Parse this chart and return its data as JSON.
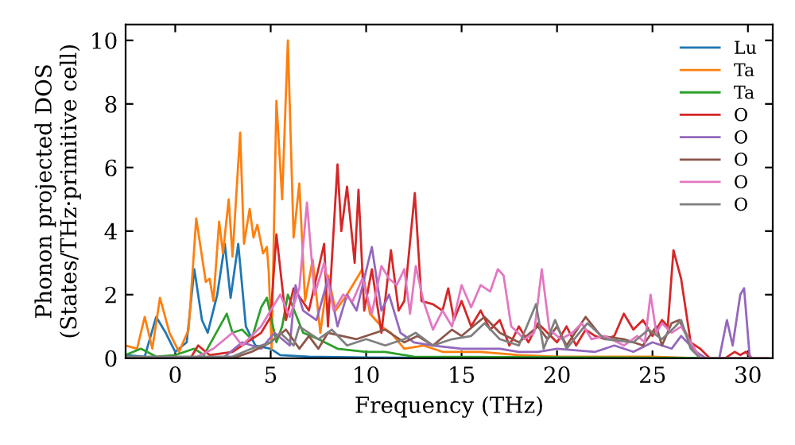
{
  "chart_data": {
    "type": "line",
    "xlabel": "Frequency (THz)",
    "ylabel": "Phonon projected DOS\n(States/THz·primitive cell)",
    "xlim": [
      -2.6,
      31.3
    ],
    "ylim": [
      0,
      10.5
    ],
    "xticks": [
      0,
      5,
      10,
      15,
      20,
      25,
      30
    ],
    "yticks": [
      0,
      2,
      4,
      6,
      8,
      10
    ],
    "grid": false,
    "legend": "top right",
    "marker": "none",
    "line_style": "solid",
    "series": [
      {
        "name": "Lu",
        "color": "#1f77b4",
        "x": [
          -2.6,
          -1.6,
          -1.0,
          -0.5,
          0,
          0.6,
          1.0,
          1.4,
          1.7,
          2.2,
          2.6,
          2.9,
          3.3,
          3.7,
          4.2,
          5.0,
          5.5,
          7,
          10,
          31
        ],
        "values": [
          0.1,
          0.05,
          1.3,
          0.8,
          0.2,
          0.5,
          2.8,
          1.2,
          0.8,
          2.0,
          3.6,
          1.9,
          3.6,
          1.0,
          0.4,
          0.3,
          0.1,
          0.05,
          0.02,
          0
        ]
      },
      {
        "name": "Ta",
        "color": "#ff7f0e",
        "x": [
          -2.6,
          -2,
          -1.6,
          -1.2,
          -0.8,
          -0.3,
          0.2,
          0.7,
          1.1,
          1.3,
          1.6,
          1.8,
          2.0,
          2.3,
          2.5,
          2.8,
          3.0,
          3.4,
          3.6,
          3.9,
          4.1,
          4.3,
          4.6,
          4.8,
          4.9,
          5.05,
          5.3,
          5.6,
          5.9,
          6.2,
          6.5,
          6.8,
          7.2,
          7.6,
          8.0,
          8.4,
          9.0,
          9.8,
          10.2,
          10.8,
          11.3,
          12,
          13,
          14,
          15,
          16,
          18,
          20,
          25,
          27.5,
          31
        ],
        "values": [
          0.4,
          0.3,
          1.3,
          0.3,
          1.9,
          0.8,
          0.2,
          0.9,
          4.4,
          3.6,
          2.4,
          2.5,
          1.8,
          4.3,
          3.3,
          5.0,
          3.2,
          7.1,
          3.6,
          4.7,
          3.8,
          4.2,
          3.3,
          3.5,
          2.7,
          0.3,
          8.1,
          5.0,
          10.0,
          3.8,
          5.5,
          1.8,
          3.1,
          0.8,
          2.6,
          1.5,
          2.0,
          2.8,
          1.4,
          1.0,
          0.8,
          0.3,
          0.4,
          0.2,
          0.2,
          0.2,
          0.1,
          0.05,
          0.05,
          0,
          0
        ]
      },
      {
        "name": "Ta",
        "color": "#2ca02c",
        "x": [
          -2.6,
          -1.8,
          -1,
          0,
          1.0,
          1.5,
          2.7,
          3.0,
          3.5,
          4.0,
          4.5,
          4.8,
          5.3,
          5.6,
          5.9,
          6.7,
          7.5,
          8.5,
          10,
          11,
          12.5,
          31
        ],
        "values": [
          0.1,
          0.3,
          0.05,
          0.1,
          0.3,
          0.1,
          1.4,
          0.8,
          0.9,
          0.6,
          1.6,
          1.9,
          0.5,
          1.0,
          2.0,
          0.8,
          0.6,
          0.3,
          0.2,
          0.2,
          0.05,
          0
        ]
      },
      {
        "name": "O",
        "color": "#d62728",
        "x": [
          -2.6,
          0.8,
          1.2,
          1.8,
          3,
          4.5,
          5.0,
          5.3,
          5.8,
          6.2,
          7,
          7.8,
          8.0,
          8.5,
          8.7,
          9.0,
          9.4,
          9.6,
          9.9,
          10.3,
          10.8,
          11.3,
          11.7,
          12.0,
          12.55,
          12.9,
          13.5,
          14,
          14.3,
          14.6,
          15,
          15.5,
          16,
          16.5,
          17,
          17.5,
          18,
          18.5,
          19,
          20,
          20.5,
          21,
          21.5,
          22,
          22.5,
          23,
          23.5,
          24,
          24.5,
          25,
          25.5,
          25.8,
          26.1,
          26.5,
          27,
          27.5,
          28,
          28.8,
          29.3,
          29.6,
          29.9,
          30.2,
          31
        ],
        "values": [
          0,
          0,
          0.4,
          0.1,
          0.2,
          0.8,
          1.3,
          3.9,
          1.2,
          2.2,
          1.5,
          3.6,
          1.0,
          6.1,
          4.0,
          5.4,
          3.0,
          5.3,
          1.5,
          2.8,
          0.8,
          3.4,
          1.5,
          1.8,
          5.2,
          1.8,
          1.7,
          1.5,
          2.2,
          1.2,
          1.8,
          1.0,
          1.5,
          0.9,
          1.2,
          0.4,
          1.0,
          0.5,
          1.1,
          0.5,
          1.0,
          0.4,
          0.9,
          0.7,
          0.6,
          0.7,
          1.4,
          0.9,
          1.2,
          0.7,
          1.2,
          1.0,
          3.4,
          2.5,
          0.5,
          0.3,
          0,
          0,
          0.2,
          0.1,
          0.2,
          0,
          0
        ]
      },
      {
        "name": "O",
        "color": "#9467bd",
        "x": [
          -2.6,
          2.5,
          3.5,
          4.5,
          5.2,
          6,
          6.3,
          6.7,
          7.4,
          8.0,
          8.5,
          9.0,
          9.5,
          10.3,
          10.8,
          11.2,
          11.8,
          12.5,
          13.5,
          15,
          17,
          18,
          19,
          20,
          22,
          23,
          24,
          25,
          26,
          26.5,
          27.3,
          27.8,
          28.5,
          28.9,
          29.2,
          29.6,
          29.8,
          30.1,
          31
        ],
        "values": [
          0,
          0,
          0.5,
          0.3,
          0.8,
          0.4,
          2.3,
          1.5,
          1.2,
          2.5,
          1.0,
          2.0,
          1.5,
          3.5,
          1.5,
          2.0,
          0.8,
          0.5,
          0.4,
          0.3,
          0.3,
          0.2,
          0.2,
          0.3,
          0.2,
          0.4,
          0.2,
          0.5,
          0.3,
          0.7,
          0.2,
          0,
          0,
          1.2,
          0.4,
          2.0,
          2.2,
          0,
          0
        ]
      },
      {
        "name": "O",
        "color": "#8c564b",
        "x": [
          -2.6,
          3,
          4,
          5,
          5.8,
          6.5,
          7,
          7.5,
          8.0,
          9.5,
          11,
          12,
          12.7,
          13.5,
          14.5,
          15,
          16.2,
          17,
          18,
          19,
          19.5,
          20,
          20.5,
          21.5,
          22.3,
          23.5,
          24.5,
          25.2,
          25.5,
          26,
          26.4,
          27,
          27.5,
          31
        ],
        "values": [
          0,
          0,
          0.2,
          0.5,
          0.9,
          0.3,
          0.7,
          0.3,
          0.8,
          0.6,
          0.9,
          0.5,
          0.7,
          0.4,
          0.9,
          0.7,
          1.3,
          0.8,
          0.5,
          1.0,
          0.6,
          1.0,
          0.4,
          1.3,
          0.7,
          0.6,
          0.4,
          1.0,
          0.4,
          1.1,
          1.2,
          0.5,
          0,
          0
        ]
      },
      {
        "name": "O",
        "color": "#e377c2",
        "x": [
          -2.6,
          1,
          2,
          3.0,
          3.5,
          4.5,
          5.5,
          6,
          6.5,
          6.9,
          7.3,
          7.8,
          8.3,
          8.8,
          9.3,
          9.8,
          10.3,
          10.8,
          11.2,
          11.6,
          12,
          12.3,
          12.6,
          13,
          13.5,
          14,
          14.5,
          15,
          15.5,
          16,
          16.5,
          16.9,
          17.2,
          17.6,
          18.3,
          18.8,
          19.2,
          19.6,
          20.2,
          20.8,
          21.3,
          21.8,
          22.5,
          23.5,
          24.2,
          24.6,
          24.9,
          25.2,
          25.5,
          26,
          26.5,
          27,
          27.5,
          31
        ],
        "values": [
          0,
          0,
          0.3,
          0.8,
          0.4,
          1.0,
          2.0,
          1.3,
          2.2,
          4.9,
          2.0,
          3.0,
          1.5,
          2.0,
          1.8,
          2.5,
          1.4,
          2.9,
          2.5,
          2.3,
          2.8,
          1.4,
          2.9,
          1.8,
          0.9,
          1.5,
          1.0,
          2.3,
          1.6,
          2.3,
          2.1,
          2.8,
          2.6,
          1.0,
          0.6,
          0.8,
          2.8,
          0.9,
          0.6,
          0.8,
          1.1,
          0.6,
          0.7,
          0.4,
          0.7,
          0.5,
          2.0,
          0.8,
          1.1,
          0.8,
          1.0,
          0.5,
          0,
          0
        ]
      },
      {
        "name": "O",
        "color": "#7f7f7f",
        "x": [
          -2.6,
          3,
          4,
          5,
          5.5,
          6.2,
          6.5,
          7.5,
          8.2,
          9,
          10,
          11,
          12,
          12.6,
          13.5,
          14.5,
          15.5,
          16.2,
          17,
          18,
          18.9,
          19.3,
          19.9,
          20.5,
          21.3,
          21.6,
          22.5,
          24,
          24.8,
          25.5,
          26.2,
          26.5,
          27,
          27.5,
          31
        ],
        "values": [
          0.05,
          0.05,
          0.3,
          0.5,
          0.8,
          0.4,
          1.0,
          0.6,
          0.9,
          0.4,
          0.6,
          0.4,
          0.6,
          0.8,
          0.4,
          0.6,
          0.7,
          1.1,
          0.6,
          0.4,
          1.7,
          0.3,
          1.2,
          0.3,
          0.9,
          1.1,
          0.6,
          0.5,
          0.9,
          0.6,
          1.0,
          1.2,
          0.3,
          0,
          0
        ]
      }
    ]
  }
}
